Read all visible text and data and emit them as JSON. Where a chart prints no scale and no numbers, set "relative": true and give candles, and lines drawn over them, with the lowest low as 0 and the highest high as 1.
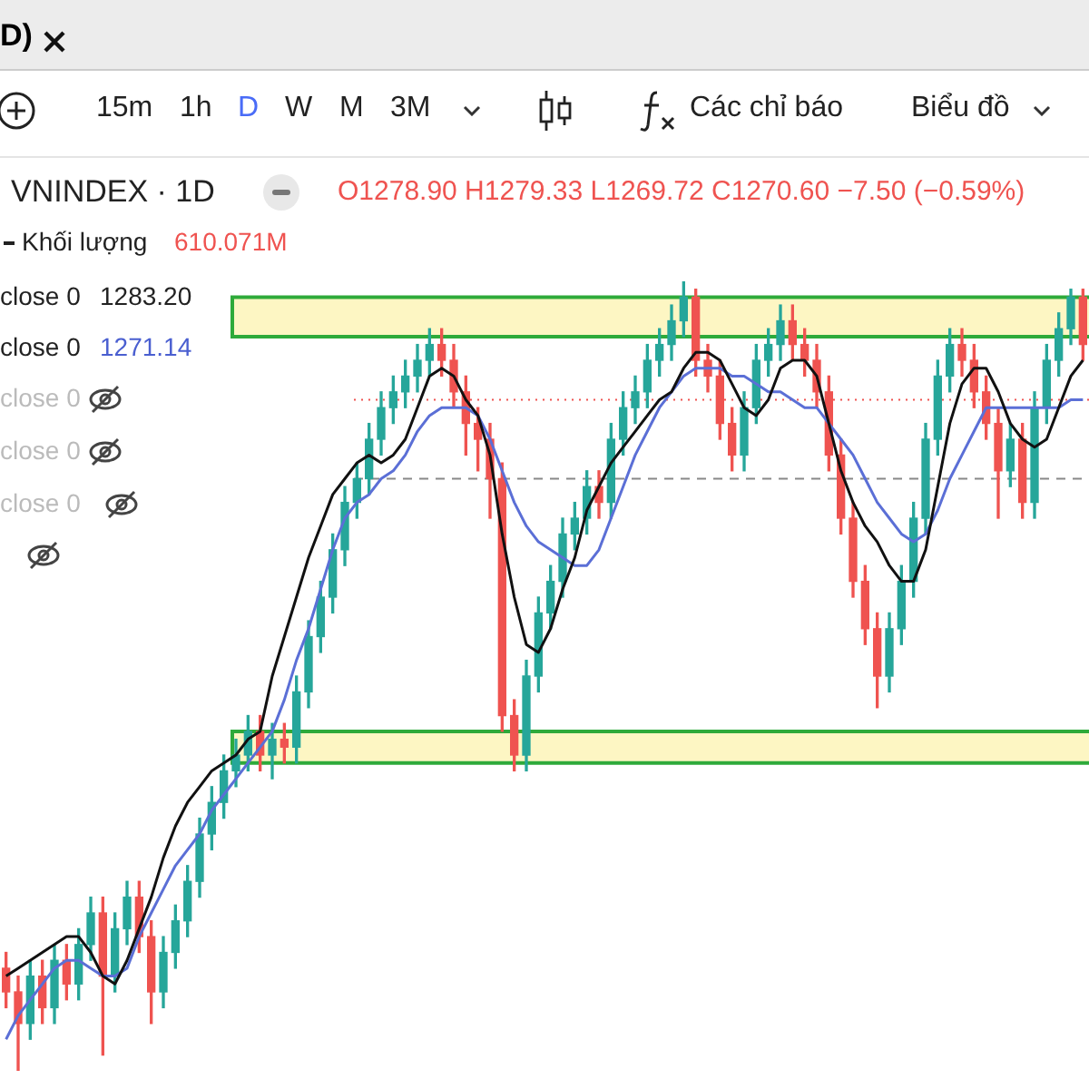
{
  "chart_data": {
    "type": "candlestick",
    "title": "VNINDEX · 1D",
    "subtitle": "O1278.90 H1279.33 L1269.72 C1270.60 −7.50 (−0.59%)",
    "relative": true,
    "legend": false,
    "categories": [
      null,
      null,
      null,
      null,
      null,
      null,
      null,
      null,
      null,
      null,
      null,
      null,
      null,
      null,
      null,
      null,
      null,
      null,
      null,
      null,
      null,
      null,
      null,
      null,
      null,
      null,
      null,
      null,
      null,
      null,
      null,
      null,
      null,
      null,
      null,
      null,
      null,
      null,
      null,
      null,
      null,
      null,
      null,
      null,
      null,
      null,
      null,
      null,
      null,
      null,
      null,
      null,
      null,
      null,
      null,
      null,
      null,
      null,
      null,
      null,
      null,
      null,
      null,
      null,
      null,
      null,
      null,
      null,
      null,
      null,
      null,
      null,
      null,
      null,
      null,
      null,
      null,
      null,
      null,
      null,
      null,
      null,
      null,
      null,
      null,
      null,
      null,
      null,
      null,
      null
    ],
    "ohlc": [
      [
        0.13,
        0.15,
        0.08,
        0.1
      ],
      [
        0.1,
        0.12,
        0.0,
        0.06
      ],
      [
        0.06,
        0.14,
        0.04,
        0.12
      ],
      [
        0.12,
        0.14,
        0.06,
        0.08
      ],
      [
        0.08,
        0.16,
        0.06,
        0.14
      ],
      [
        0.14,
        0.16,
        0.09,
        0.11
      ],
      [
        0.11,
        0.18,
        0.09,
        0.16
      ],
      [
        0.16,
        0.22,
        0.14,
        0.2
      ],
      [
        0.2,
        0.22,
        0.02,
        0.12
      ],
      [
        0.12,
        0.2,
        0.1,
        0.18
      ],
      [
        0.18,
        0.24,
        0.16,
        0.22
      ],
      [
        0.22,
        0.24,
        0.15,
        0.17
      ],
      [
        0.17,
        0.19,
        0.06,
        0.1
      ],
      [
        0.1,
        0.17,
        0.08,
        0.15
      ],
      [
        0.15,
        0.21,
        0.13,
        0.19
      ],
      [
        0.19,
        0.26,
        0.17,
        0.24
      ],
      [
        0.24,
        0.32,
        0.22,
        0.3
      ],
      [
        0.3,
        0.36,
        0.28,
        0.34
      ],
      [
        0.34,
        0.4,
        0.32,
        0.38
      ],
      [
        0.38,
        0.42,
        0.36,
        0.4
      ],
      [
        0.4,
        0.45,
        0.38,
        0.43
      ],
      [
        0.43,
        0.45,
        0.38,
        0.4
      ],
      [
        0.4,
        0.44,
        0.37,
        0.42
      ],
      [
        0.42,
        0.44,
        0.39,
        0.41
      ],
      [
        0.41,
        0.5,
        0.39,
        0.48
      ],
      [
        0.48,
        0.57,
        0.46,
        0.55
      ],
      [
        0.55,
        0.62,
        0.53,
        0.6
      ],
      [
        0.6,
        0.68,
        0.58,
        0.66
      ],
      [
        0.66,
        0.74,
        0.64,
        0.72
      ],
      [
        0.72,
        0.77,
        0.7,
        0.75
      ],
      [
        0.75,
        0.82,
        0.73,
        0.8
      ],
      [
        0.8,
        0.86,
        0.78,
        0.84
      ],
      [
        0.84,
        0.88,
        0.82,
        0.86
      ],
      [
        0.86,
        0.9,
        0.84,
        0.88
      ],
      [
        0.88,
        0.92,
        0.86,
        0.9
      ],
      [
        0.9,
        0.94,
        0.88,
        0.92
      ],
      [
        0.92,
        0.94,
        0.88,
        0.9
      ],
      [
        0.9,
        0.92,
        0.84,
        0.86
      ],
      [
        0.86,
        0.88,
        0.78,
        0.82
      ],
      [
        0.82,
        0.84,
        0.76,
        0.8
      ],
      [
        0.8,
        0.82,
        0.7,
        0.75
      ],
      [
        0.75,
        0.77,
        0.43,
        0.45
      ],
      [
        0.45,
        0.47,
        0.38,
        0.4
      ],
      [
        0.4,
        0.52,
        0.38,
        0.5
      ],
      [
        0.5,
        0.6,
        0.48,
        0.58
      ],
      [
        0.58,
        0.64,
        0.56,
        0.62
      ],
      [
        0.62,
        0.7,
        0.6,
        0.68
      ],
      [
        0.68,
        0.72,
        0.66,
        0.7
      ],
      [
        0.7,
        0.76,
        0.68,
        0.74
      ],
      [
        0.74,
        0.76,
        0.7,
        0.72
      ],
      [
        0.72,
        0.82,
        0.7,
        0.8
      ],
      [
        0.8,
        0.86,
        0.78,
        0.84
      ],
      [
        0.84,
        0.88,
        0.82,
        0.86
      ],
      [
        0.86,
        0.92,
        0.84,
        0.9
      ],
      [
        0.9,
        0.94,
        0.88,
        0.92
      ],
      [
        0.92,
        0.97,
        0.9,
        0.95
      ],
      [
        0.95,
        1.0,
        0.93,
        0.98
      ],
      [
        0.98,
        0.99,
        0.88,
        0.9
      ],
      [
        0.9,
        0.92,
        0.86,
        0.88
      ],
      [
        0.88,
        0.9,
        0.8,
        0.82
      ],
      [
        0.82,
        0.84,
        0.76,
        0.78
      ],
      [
        0.78,
        0.86,
        0.76,
        0.84
      ],
      [
        0.84,
        0.92,
        0.82,
        0.9
      ],
      [
        0.9,
        0.94,
        0.88,
        0.92
      ],
      [
        0.92,
        0.97,
        0.9,
        0.95
      ],
      [
        0.95,
        0.97,
        0.9,
        0.92
      ],
      [
        0.92,
        0.94,
        0.88,
        0.9
      ],
      [
        0.9,
        0.92,
        0.84,
        0.86
      ],
      [
        0.86,
        0.88,
        0.76,
        0.78
      ],
      [
        0.78,
        0.8,
        0.68,
        0.7
      ],
      [
        0.7,
        0.72,
        0.6,
        0.62
      ],
      [
        0.62,
        0.64,
        0.54,
        0.56
      ],
      [
        0.56,
        0.58,
        0.46,
        0.5
      ],
      [
        0.5,
        0.58,
        0.48,
        0.56
      ],
      [
        0.56,
        0.64,
        0.54,
        0.62
      ],
      [
        0.62,
        0.72,
        0.6,
        0.7
      ],
      [
        0.7,
        0.82,
        0.68,
        0.8
      ],
      [
        0.8,
        0.9,
        0.78,
        0.88
      ],
      [
        0.88,
        0.94,
        0.86,
        0.92
      ],
      [
        0.92,
        0.94,
        0.88,
        0.9
      ],
      [
        0.9,
        0.92,
        0.84,
        0.86
      ],
      [
        0.86,
        0.88,
        0.8,
        0.82
      ],
      [
        0.82,
        0.84,
        0.7,
        0.76
      ],
      [
        0.76,
        0.82,
        0.74,
        0.8
      ],
      [
        0.8,
        0.82,
        0.7,
        0.72
      ],
      [
        0.72,
        0.86,
        0.7,
        0.84
      ],
      [
        0.84,
        0.92,
        0.82,
        0.9
      ],
      [
        0.9,
        0.96,
        0.88,
        0.94
      ],
      [
        0.94,
        0.99,
        0.92,
        0.98
      ],
      [
        0.98,
        0.99,
        0.9,
        0.92
      ]
    ],
    "colors": [
      "#ef5350",
      "#ef5350",
      "#26a69a",
      "#ef5350",
      "#26a69a",
      "#ef5350",
      "#26a69a",
      "#26a69a",
      "#ef5350",
      "#26a69a",
      "#26a69a",
      "#ef5350",
      "#ef5350",
      "#26a69a",
      "#26a69a",
      "#26a69a",
      "#26a69a",
      "#26a69a",
      "#26a69a",
      "#26a69a",
      "#26a69a",
      "#ef5350",
      "#26a69a",
      "#ef5350",
      "#26a69a",
      "#26a69a",
      "#26a69a",
      "#26a69a",
      "#26a69a",
      "#26a69a",
      "#26a69a",
      "#26a69a",
      "#26a69a",
      "#26a69a",
      "#26a69a",
      "#26a69a",
      "#ef5350",
      "#ef5350",
      "#ef5350",
      "#ef5350",
      "#ef5350",
      "#ef5350",
      "#ef5350",
      "#26a69a",
      "#26a69a",
      "#26a69a",
      "#26a69a",
      "#26a69a",
      "#26a69a",
      "#ef5350",
      "#26a69a",
      "#26a69a",
      "#26a69a",
      "#26a69a",
      "#26a69a",
      "#26a69a",
      "#26a69a",
      "#ef5350",
      "#ef5350",
      "#ef5350",
      "#ef5350",
      "#26a69a",
      "#26a69a",
      "#26a69a",
      "#26a69a",
      "#ef5350",
      "#ef5350",
      "#ef5350",
      "#ef5350",
      "#ef5350",
      "#ef5350",
      "#ef5350",
      "#ef5350",
      "#26a69a",
      "#26a69a",
      "#26a69a",
      "#26a69a",
      "#26a69a",
      "#26a69a",
      "#ef5350",
      "#ef5350",
      "#ef5350",
      "#ef5350",
      "#26a69a",
      "#ef5350",
      "#26a69a",
      "#26a69a",
      "#26a69a",
      "#26a69a",
      "#ef5350"
    ],
    "series": [
      {
        "type": "line",
        "color": "#111111",
        "values": [
          0.12,
          0.13,
          0.14,
          0.15,
          0.16,
          0.17,
          0.17,
          0.15,
          0.12,
          0.11,
          0.14,
          0.18,
          0.22,
          0.27,
          0.31,
          0.34,
          0.36,
          0.38,
          0.39,
          0.4,
          0.42,
          0.43,
          0.5,
          0.55,
          0.6,
          0.65,
          0.69,
          0.73,
          0.75,
          0.77,
          0.78,
          0.77,
          0.78,
          0.8,
          0.84,
          0.88,
          0.89,
          0.88,
          0.85,
          0.83,
          0.78,
          0.68,
          0.6,
          0.54,
          0.53,
          0.56,
          0.61,
          0.65,
          0.71,
          0.74,
          0.77,
          0.79,
          0.81,
          0.83,
          0.85,
          0.86,
          0.89,
          0.91,
          0.91,
          0.9,
          0.87,
          0.84,
          0.83,
          0.85,
          0.89,
          0.9,
          0.9,
          0.88,
          0.82,
          0.76,
          0.72,
          0.69,
          0.67,
          0.64,
          0.62,
          0.62,
          0.66,
          0.74,
          0.82,
          0.87,
          0.89,
          0.89,
          0.86,
          0.82,
          0.8,
          0.79,
          0.8,
          0.84,
          0.88,
          0.9
        ]
      },
      {
        "type": "line",
        "color": "#5b6fd6",
        "values": [
          0.04,
          0.07,
          0.09,
          0.11,
          0.13,
          0.14,
          0.14,
          0.13,
          0.12,
          0.12,
          0.13,
          0.17,
          0.2,
          0.23,
          0.26,
          0.28,
          0.3,
          0.33,
          0.35,
          0.37,
          0.39,
          0.41,
          0.43,
          0.47,
          0.52,
          0.56,
          0.61,
          0.66,
          0.7,
          0.72,
          0.73,
          0.75,
          0.76,
          0.78,
          0.81,
          0.83,
          0.84,
          0.84,
          0.84,
          0.83,
          0.8,
          0.76,
          0.72,
          0.69,
          0.67,
          0.66,
          0.65,
          0.64,
          0.64,
          0.66,
          0.7,
          0.74,
          0.78,
          0.81,
          0.84,
          0.86,
          0.88,
          0.89,
          0.89,
          0.89,
          0.88,
          0.88,
          0.87,
          0.86,
          0.86,
          0.85,
          0.84,
          0.84,
          0.82,
          0.8,
          0.78,
          0.75,
          0.72,
          0.7,
          0.68,
          0.67,
          0.68,
          0.71,
          0.75,
          0.78,
          0.81,
          0.84,
          0.84,
          0.84,
          0.84,
          0.84,
          0.84,
          0.84,
          0.85,
          0.85
        ]
      }
    ],
    "bands": [
      {
        "axis": "y",
        "from": 0.93,
        "to": 0.98,
        "color": "#fdf6c3"
      },
      {
        "axis": "y",
        "from": 0.39,
        "to": 0.43,
        "color": "#fdf6c3"
      }
    ],
    "ref_lines": [
      {
        "axis": "y",
        "value": 0.85,
        "color": "#ef5350",
        "line_style": "dotted"
      },
      {
        "axis": "y",
        "value": 0.75,
        "color": "#888888",
        "line_style": "dashed"
      }
    ],
    "annotations": [
      "D)",
      "15m",
      "1h",
      "D",
      "W",
      "M",
      "3M",
      "Các chỉ báo",
      "Biểu đồ",
      "Khối lượng",
      "610.071M",
      "close 0",
      "1283.20",
      "close 0",
      "1271.14",
      "close 0",
      "close 0",
      "close 0"
    ]
  }
}
